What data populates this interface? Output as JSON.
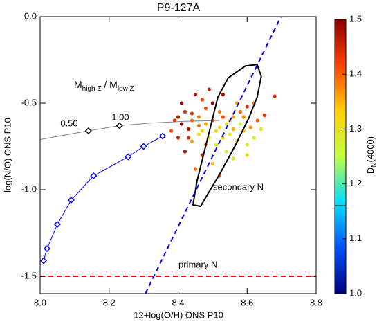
{
  "chart_data": {
    "type": "scatter",
    "title": "P9-127A",
    "xlabel": "12+log(O/H) ONS P10",
    "ylabel": "log(N/O) ONS P10",
    "xlim": [
      8.0,
      8.8
    ],
    "ylim": [
      -1.6,
      0.0
    ],
    "xticks": [
      {
        "value": 8,
        "label": "8.0"
      },
      8.2,
      8.4,
      8.6,
      8.8
    ],
    "yticks": [
      {
        "value": 0,
        "label": "0.0"
      },
      -0.5,
      {
        "value": -1,
        "label": "-1.0"
      },
      -1.5
    ],
    "colorbar": {
      "label": [
        "D",
        "N",
        "(4000)"
      ],
      "lim": [
        1.0,
        1.5
      ],
      "ticks": [
        {
          "value": 1,
          "label": "1.0"
        },
        1.1,
        1.2,
        1.3,
        1.4,
        1.5
      ],
      "marker": 1.16,
      "colormap": [
        "#00007f",
        "#0050ff",
        "#00e0ff",
        "#c0ff40",
        "#ffd000",
        "#ff4000",
        "#8b0000"
      ]
    },
    "annotations": {
      "mass_ratio": [
        "M",
        "high Z",
        " / M",
        "low Z"
      ],
      "label_low": "0.50",
      "label_high": "1.00",
      "secondary": "secondary N",
      "primary": "primary N"
    },
    "series": [
      {
        "kind": "points",
        "x": [
          8.42,
          8.44,
          8.46,
          8.48,
          8.5,
          8.52,
          8.54,
          8.56,
          8.58,
          8.6,
          8.62,
          8.45,
          8.47,
          8.43,
          8.41,
          8.39,
          8.4,
          8.38,
          8.44,
          8.46,
          8.49,
          8.51,
          8.53,
          8.55,
          8.57,
          8.59,
          8.61,
          8.63,
          8.65,
          8.68,
          8.5,
          8.52,
          8.48,
          8.54,
          8.56,
          8.6,
          8.5,
          8.45,
          8.52,
          8.47,
          8.42,
          8.58,
          8.62,
          8.57,
          8.53,
          8.49,
          8.41,
          8.44,
          8.46,
          8.51,
          8.55,
          8.59,
          8.64,
          8.48,
          8.43,
          8.4,
          8.6,
          8.47,
          8.53,
          8.56
        ],
        "y": [
          -0.55,
          -0.6,
          -0.58,
          -0.62,
          -0.6,
          -0.64,
          -0.62,
          -0.58,
          -0.55,
          -0.52,
          -0.5,
          -0.45,
          -0.48,
          -0.65,
          -0.62,
          -0.6,
          -0.7,
          -0.66,
          -0.72,
          -0.68,
          -0.7,
          -0.74,
          -0.7,
          -0.68,
          -0.72,
          -0.66,
          -0.64,
          -0.6,
          -0.57,
          -0.46,
          -0.5,
          -0.55,
          -0.53,
          -0.78,
          -0.82,
          -0.8,
          -0.85,
          -0.88,
          -0.92,
          -0.8,
          -0.78,
          -0.62,
          -0.7,
          -0.5,
          -0.45,
          -0.42,
          -0.5,
          -0.56,
          -0.63,
          -0.66,
          -0.6,
          -0.58,
          -0.65,
          -0.74,
          -0.7,
          -0.58,
          -0.74,
          -0.66,
          -0.58,
          -0.65
        ],
        "c": [
          1.45,
          1.4,
          1.38,
          1.35,
          1.42,
          1.33,
          1.3,
          1.36,
          1.4,
          1.45,
          1.38,
          1.48,
          1.42,
          1.47,
          1.5,
          1.44,
          1.46,
          1.41,
          1.36,
          1.32,
          1.3,
          1.28,
          1.33,
          1.29,
          1.31,
          1.34,
          1.37,
          1.4,
          1.43,
          1.44,
          1.49,
          1.39,
          1.41,
          1.27,
          1.3,
          1.32,
          1.35,
          1.4,
          1.42,
          1.45,
          1.48,
          1.25,
          1.28,
          1.36,
          1.47,
          1.46,
          1.49,
          1.43,
          1.39,
          1.31,
          1.34,
          1.38,
          1.3,
          1.37,
          1.44,
          1.46,
          1.29,
          1.33,
          1.41,
          1.35
        ]
      },
      {
        "kind": "line",
        "color": "#808080",
        "x": [
          8.0,
          8.07,
          8.14,
          8.23,
          8.32,
          8.42,
          8.52
        ],
        "y": [
          -0.71,
          -0.685,
          -0.66,
          -0.63,
          -0.615,
          -0.605,
          -0.6
        ]
      },
      {
        "kind": "markers",
        "color": "#000000",
        "x": [
          8.14,
          8.23
        ],
        "y": [
          -0.66,
          -0.63
        ]
      },
      {
        "kind": "linemarkers",
        "color": "#0000ff",
        "x": [
          8.01,
          8.02,
          8.05,
          8.09,
          8.155,
          8.255,
          8.3,
          8.355
        ],
        "y": [
          -1.41,
          -1.34,
          -1.2,
          -1.06,
          -0.92,
          -0.81,
          -0.75,
          -0.69
        ]
      },
      {
        "kind": "contour",
        "color": "#000000",
        "x": [
          8.443,
          8.455,
          8.475,
          8.495,
          8.515,
          8.545,
          8.595,
          8.629,
          8.641,
          8.629,
          8.605,
          8.565,
          8.521,
          8.485,
          8.465
        ],
        "y": [
          -1.088,
          -0.948,
          -0.787,
          -0.627,
          -0.466,
          -0.354,
          -0.285,
          -0.277,
          -0.345,
          -0.466,
          -0.586,
          -0.747,
          -0.908,
          -1.028,
          -1.096
        ]
      },
      {
        "kind": "dashed",
        "color": "#0000ff",
        "x": [
          8.305,
          8.698
        ],
        "y": [
          -1.6,
          0.0
        ]
      },
      {
        "kind": "dashed",
        "color": "#ff0000",
        "x": [
          8.0,
          8.8
        ],
        "y": [
          -1.5,
          -1.5
        ]
      }
    ]
  }
}
